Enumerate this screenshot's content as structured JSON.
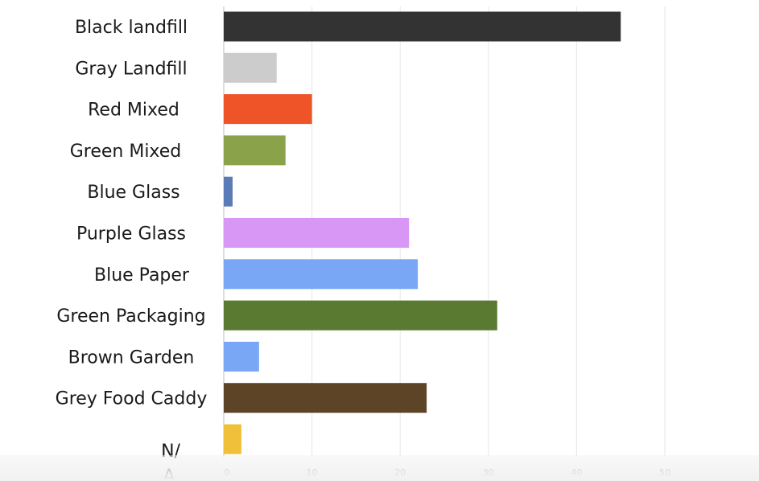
{
  "chart_data": {
    "type": "bar",
    "orientation": "horizontal",
    "categories": [
      "Black landfill",
      "Gray Landfill",
      "Red Mixed",
      "Green Mixed",
      "Blue Glass",
      "Purple Glass",
      "Blue Paper",
      "Green Packaging",
      "Brown Garden",
      "Grey Food Caddy",
      "N/A"
    ],
    "values": [
      45,
      6,
      10,
      7,
      1,
      21,
      22,
      31,
      4,
      23,
      2
    ],
    "colors": [
      "#333333",
      "#cccccc",
      "#ef5429",
      "#8aa34a",
      "#5a7bb5",
      "#d896f5",
      "#7aa7f5",
      "#5a7a32",
      "#7aa7f5",
      "#5e4426",
      "#f0c03a"
    ],
    "xlim": [
      0,
      50
    ],
    "xticks": [
      0,
      10,
      20,
      30,
      40,
      50
    ],
    "grid": true,
    "title": "",
    "xlabel": "",
    "ylabel": ""
  }
}
